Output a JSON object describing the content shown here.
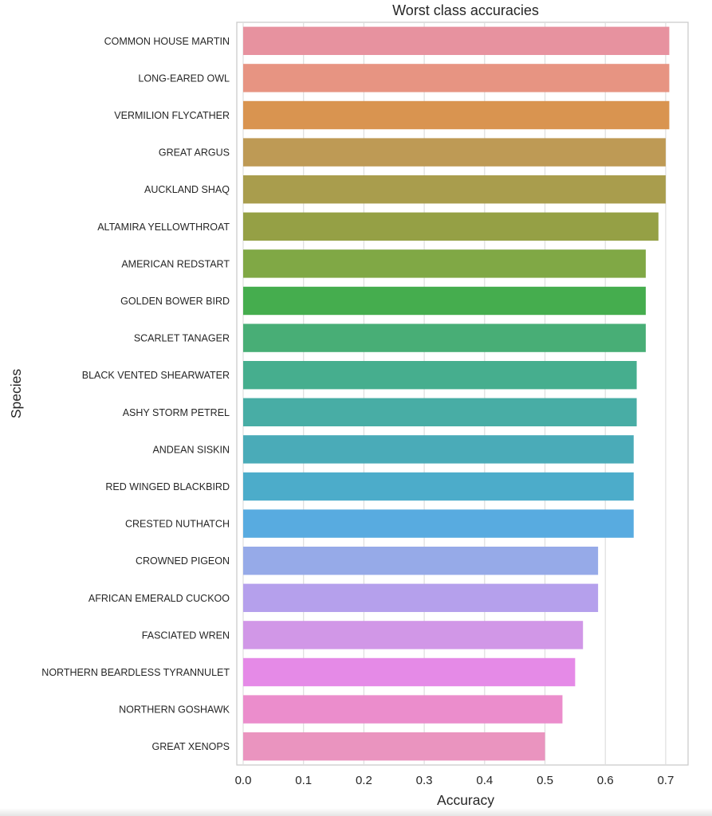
{
  "chart_data": {
    "type": "bar",
    "orientation": "horizontal",
    "title": "Worst class accuracies",
    "xlabel": "Accuracy",
    "ylabel": "Species",
    "xlim": [
      0,
      0.74
    ],
    "xticks": [
      0.0,
      0.1,
      0.2,
      0.3,
      0.4,
      0.5,
      0.6,
      0.7
    ],
    "xtick_labels": [
      "0.0",
      "0.1",
      "0.2",
      "0.3",
      "0.4",
      "0.5",
      "0.6",
      "0.7"
    ],
    "grid": true,
    "categories": [
      "COMMON HOUSE MARTIN",
      "LONG-EARED OWL",
      "VERMILION FLYCATHER",
      "GREAT ARGUS",
      "AUCKLAND SHAQ",
      "ALTAMIRA YELLOWTHROAT",
      "AMERICAN REDSTART",
      "GOLDEN BOWER BIRD",
      "SCARLET TANAGER",
      "BLACK VENTED SHEARWATER",
      "ASHY STORM PETREL",
      "ANDEAN SISKIN",
      "RED WINGED BLACKBIRD",
      "CRESTED NUTHATCH",
      "CROWNED PIGEON",
      "AFRICAN EMERALD CUCKOO",
      "FASCIATED WREN",
      "NORTHERN BEARDLESS TYRANNULET",
      "NORTHERN GOSHAWK",
      "GREAT XENOPS"
    ],
    "values": [
      0.706,
      0.706,
      0.706,
      0.7,
      0.7,
      0.688,
      0.667,
      0.667,
      0.667,
      0.652,
      0.652,
      0.647,
      0.647,
      0.647,
      0.588,
      0.588,
      0.563,
      0.55,
      0.529,
      0.5
    ],
    "colors": [
      "#e7929f",
      "#e79482",
      "#d99450",
      "#be9a55",
      "#a99d4d",
      "#95a045",
      "#80a845",
      "#45ad4e",
      "#48ae76",
      "#46ae8e",
      "#48ada5",
      "#4aabb8",
      "#4cacca",
      "#58abe0",
      "#96aae8",
      "#b5a0ec",
      "#d197e7",
      "#e58ae7",
      "#eb8dcc",
      "#ea94bf"
    ]
  }
}
